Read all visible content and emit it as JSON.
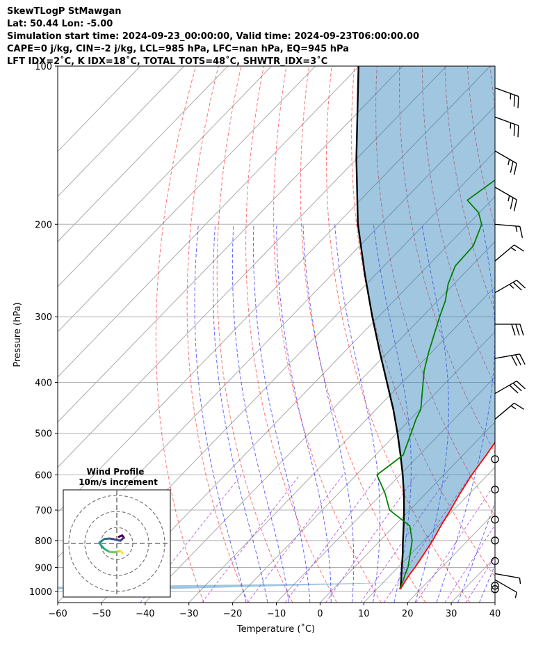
{
  "header": {
    "line1": "SkewTLogP StMawgan",
    "line2": "Lat: 50.44   Lon: -5.00",
    "line3": "Simulation start time: 2024-09-23_00:00:00, Valid time: 2024-09-23T06:00:00.00",
    "line4": "CAPE=0 j/kg, CIN=-2 j/kg, LCL=985 hPa, LFC=nan hPa, EQ=945 hPa",
    "line5": "LFT IDX=2˚C, K IDX=18˚C, TOTAL TOTS=48˚C, SHWTR_IDX=3˚C"
  },
  "chart_data": {
    "type": "skewt",
    "xlabel": "Temperature (˚C)",
    "ylabel": "Pressure (hPa)",
    "xlim": [
      -60,
      40
    ],
    "ylim": [
      1050,
      100
    ],
    "y_scale": "log",
    "x_ticks": [
      -60,
      -50,
      -40,
      -30,
      -20,
      -10,
      0,
      10,
      20,
      30,
      40
    ],
    "x_tick_labels": [
      "−60",
      "−50",
      "−40",
      "−30",
      "−20",
      "−10",
      "0",
      "10",
      "20",
      "30",
      "40"
    ],
    "y_ticks": [
      1000,
      900,
      800,
      700,
      600,
      500,
      400,
      300,
      200,
      100
    ],
    "y_tick_labels": [
      "1000",
      "900",
      "800",
      "700",
      "600",
      "500",
      "400",
      "300",
      "200",
      "100"
    ],
    "grid": true,
    "colors": {
      "temperature": "#ff0000",
      "dewpoint": "#008000",
      "parcel": "#000000",
      "cin_shade": "#1f77b4",
      "dry_adiabat": "#ff0000",
      "moist_adiabat": "#0000ff",
      "mixing_ratio": "#9400d3",
      "isotherm": "#808080"
    },
    "temperature": {
      "p": [
        990,
        975,
        950,
        925,
        900,
        850,
        800,
        750,
        700,
        650,
        600,
        550,
        500,
        470,
        450,
        410,
        380,
        350,
        300,
        280,
        260,
        240,
        220,
        200,
        190,
        180,
        160,
        140,
        120,
        110,
        100
      ],
      "t": [
        15.4,
        15.1,
        14.6,
        14.2,
        13.9,
        13.0,
        12.0,
        10.6,
        9.3,
        7.8,
        6.4,
        5.3,
        3.9,
        1.6,
        0.8,
        -1.6,
        -4.5,
        -7.6,
        -15.0,
        -17.2,
        -20.2,
        -22.0,
        -23.5,
        -23.3,
        -24.0,
        -24.5,
        -27.9,
        -31.6,
        -34.8,
        -36.8,
        -38.7
      ]
    },
    "dewpoint": {
      "p": [
        990,
        975,
        950,
        925,
        900,
        850,
        800,
        750,
        700,
        650,
        600,
        550,
        500,
        470,
        450,
        410,
        380,
        350,
        300,
        280,
        260,
        240,
        220,
        200,
        190,
        180,
        160,
        140,
        120,
        110,
        100
      ],
      "td": [
        15.2,
        14.8,
        14.0,
        13.1,
        12.3,
        9.9,
        7.3,
        3.5,
        -4.6,
        -9.4,
        -15.3,
        -13.7,
        -16.7,
        -18.7,
        -19.8,
        -24.1,
        -27.6,
        -30.7,
        -36.0,
        -38.2,
        -41.3,
        -43.7,
        -44.0,
        -46.9,
        -50.2,
        -55.5,
        -53.0,
        -53.0,
        -53.8,
        -55.2,
        -56.8
      ]
    },
    "parcel": {
      "p": [
        990,
        975,
        950,
        925,
        900,
        850,
        800,
        750,
        700,
        650,
        600,
        550,
        500,
        450,
        400,
        350,
        300,
        250,
        200,
        150,
        100
      ],
      "t": [
        15.4,
        14.7,
        13.5,
        12.2,
        10.9,
        8.2,
        5.2,
        2.1,
        -1.3,
        -5.1,
        -9.4,
        -14.3,
        -19.8,
        -26.1,
        -33.5,
        -41.9,
        -51.4,
        -62.3,
        -75.2,
        -90.1,
        -110.1
      ]
    },
    "wind_barbs": [
      {
        "p": 990,
        "speed_kt": 0,
        "dir_deg": 0
      },
      {
        "p": 975,
        "speed_kt": 0,
        "dir_deg": 0
      },
      {
        "p": 950,
        "speed_kt": 7,
        "dir_deg": 300
      },
      {
        "p": 925,
        "speed_kt": 8,
        "dir_deg": 280
      },
      {
        "p": 875,
        "speed_kt": 0,
        "dir_deg": 0
      },
      {
        "p": 800,
        "speed_kt": 0,
        "dir_deg": 0
      },
      {
        "p": 730,
        "speed_kt": 0,
        "dir_deg": 0
      },
      {
        "p": 640,
        "speed_kt": 0,
        "dir_deg": 0
      },
      {
        "p": 560,
        "speed_kt": 0,
        "dir_deg": 0
      },
      {
        "p": 470,
        "speed_kt": 15,
        "dir_deg": 230
      },
      {
        "p": 420,
        "speed_kt": 30,
        "dir_deg": 240
      },
      {
        "p": 360,
        "speed_kt": 30,
        "dir_deg": 260
      },
      {
        "p": 310,
        "speed_kt": 30,
        "dir_deg": 270
      },
      {
        "p": 270,
        "speed_kt": 25,
        "dir_deg": 240
      },
      {
        "p": 235,
        "speed_kt": 15,
        "dir_deg": 230
      },
      {
        "p": 200,
        "speed_kt": 15,
        "dir_deg": 275
      },
      {
        "p": 170,
        "speed_kt": 25,
        "dir_deg": 300
      },
      {
        "p": 145,
        "speed_kt": 25,
        "dir_deg": 300
      },
      {
        "p": 125,
        "speed_kt": 25,
        "dir_deg": 290
      },
      {
        "p": 110,
        "speed_kt": 25,
        "dir_deg": 290
      }
    ],
    "hodograph": {
      "title": "Wind Profile",
      "subtitle": "10m/s increment",
      "u": [
        0.5,
        1.2,
        1.6,
        0.8,
        -0.4,
        -1.6,
        -2.8,
        -3.9,
        -3.5,
        -2.7,
        -1.6,
        -0.6,
        0.2,
        0.9,
        1.3
      ],
      "v": [
        1.5,
        1.8,
        1.3,
        0.6,
        0.9,
        1.1,
        1.0,
        0.2,
        -0.5,
        -1.3,
        -1.9,
        -2.0,
        -1.8,
        -1.7,
        -2.2
      ]
    }
  }
}
